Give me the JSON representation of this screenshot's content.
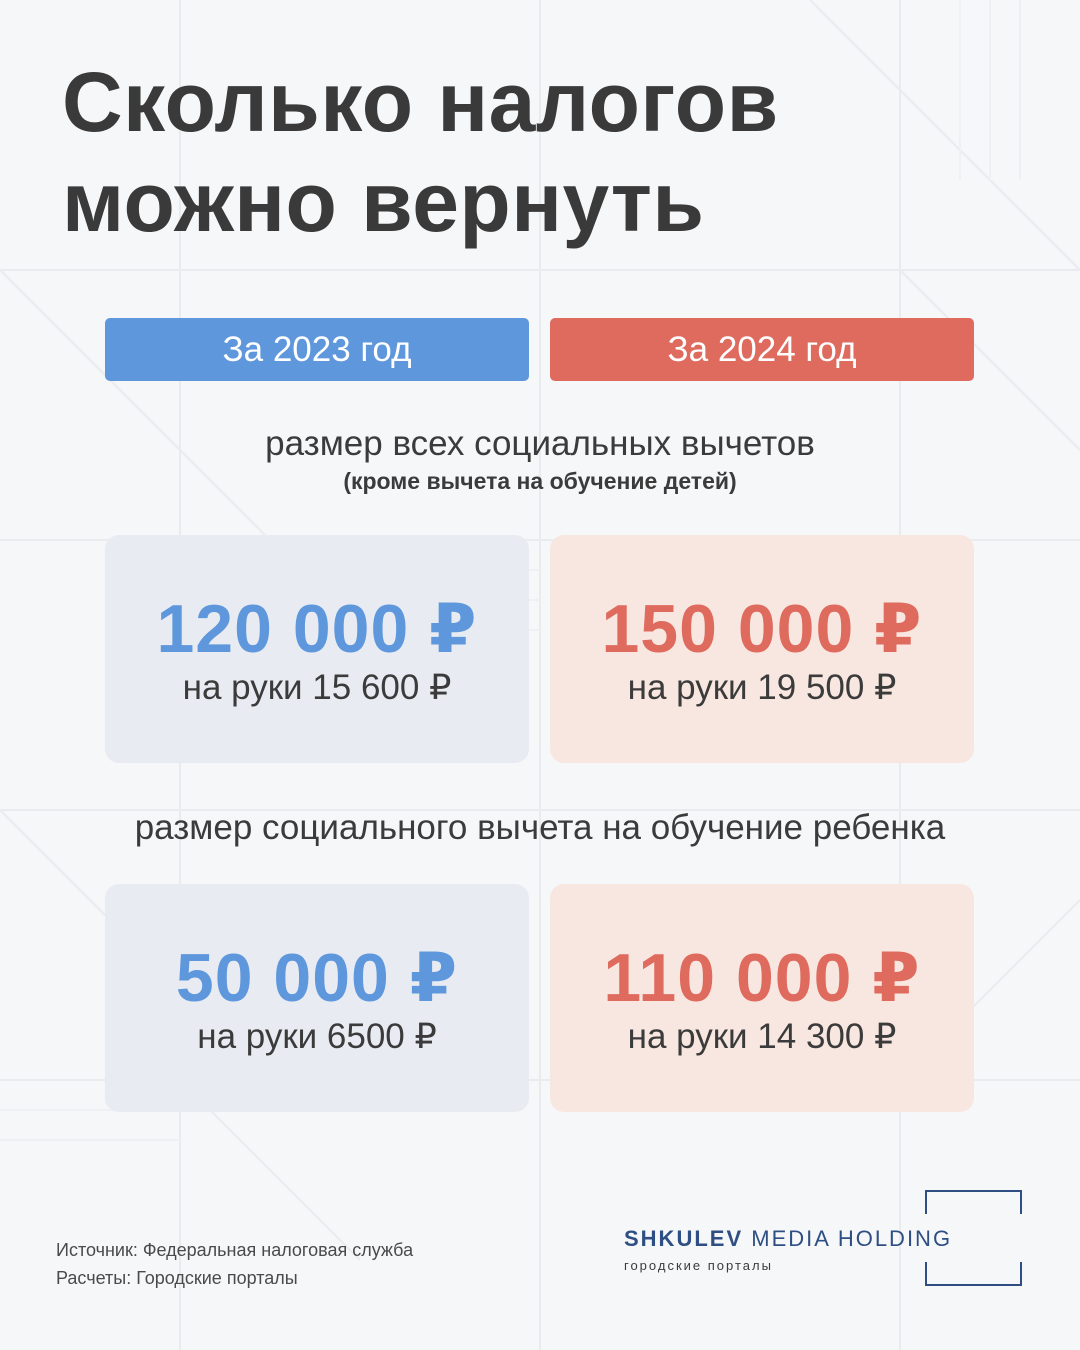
{
  "title": {
    "line1": "Сколько налогов",
    "line2": "можно вернуть"
  },
  "years": {
    "left": "За 2023 год",
    "right": "За 2024 год"
  },
  "section1": {
    "heading": "размер всех социальных вычетов",
    "note": "(кроме вычета на обучение детей)",
    "left": {
      "amount": "120 000 ₽",
      "net": "на руки 15 600 ₽"
    },
    "right": {
      "amount": "150 000 ₽",
      "net": "на руки 19 500 ₽"
    }
  },
  "section2": {
    "heading": "размер социального вычета на обучение ребенка",
    "left": {
      "amount": "50 000 ₽",
      "net": "на руки 6500 ₽"
    },
    "right": {
      "amount": "110 000 ₽",
      "net": "на руки 14 300 ₽"
    }
  },
  "footer": {
    "source": "Источник: Федеральная налоговая служба",
    "calc": "Расчеты: Городские порталы"
  },
  "logo": {
    "brand_bold": "SHKULEV",
    "brand_light": "MEDIA HOLDING",
    "subtitle": "городские порталы"
  },
  "colors": {
    "accent_2023": "#5f97dc",
    "accent_2024": "#de6b5e",
    "card_2023": "#e8ebf2",
    "card_2024": "#f8e7e0",
    "text": "#3b3b3b",
    "logo": "#2f4f84"
  }
}
